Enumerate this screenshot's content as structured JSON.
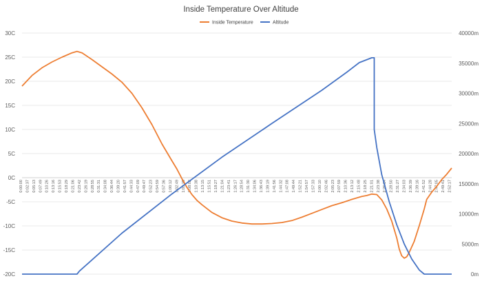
{
  "chart_data": {
    "type": "line",
    "title": "Inside Temperature Over Altitude",
    "legend_position": "top",
    "grid": true,
    "x_axis": {
      "label": "",
      "ticks": [
        "0:00:00",
        "0:02:37",
        "0:05:13",
        "0:07:49",
        "0:10:26",
        "0:13:16",
        "0:15:53",
        "0:18:29",
        "0:21:06",
        "0:23:42",
        "0:26:19",
        "0:28:55",
        "0:31:31",
        "0:34:08",
        "0:36:44",
        "0:39:20",
        "0:41:57",
        "0:44:33",
        "0:47:09",
        "0:49:47",
        "0:52:23",
        "0:54:59",
        "0:57:36",
        "1:00:12",
        "1:02:49",
        "1:05:25",
        "1:08:02",
        "1:10:38",
        "1:13:15",
        "1:15:51",
        "1:18:27",
        "1:21:04",
        "1:23:41",
        "1:26:17",
        "1:28:54",
        "1:31:30",
        "1:34:06",
        "1:36:43",
        "1:39:19",
        "1:41:56",
        "1:44:32",
        "1:47:08",
        "1:49:44",
        "1:52:21",
        "1:54:57",
        "1:57:33",
        "2:00:10",
        "2:02:46",
        "2:05:23",
        "2:07:59",
        "2:10:36",
        "2:13:12",
        "2:15:48",
        "2:18:25",
        "2:21:01",
        "2:23:38",
        "2:26:14",
        "2:28:50",
        "2:31:27",
        "2:34:03",
        "2:36:39",
        "2:39:16",
        "2:41:52",
        "2:44:28",
        "2:47:05",
        "2:49:41",
        "2:52:17",
        "2:54:54",
        "2:57:30",
        "3:00:07",
        "3:02:43",
        "3:05:19",
        "3:07:56",
        "3:10:32",
        "3:13:09",
        "3:15:45",
        "3:18:21",
        "3:20:58",
        "3:23:34",
        "3:26:10",
        "3:28:47",
        "3:31:23",
        "3:34:00",
        "3:36:36",
        "3:39:12",
        "3:41:49",
        "3:44:25",
        "3:47:01",
        "3:49:38",
        "3:52:14",
        "3:54:50",
        "3:57:27",
        "4:00:03",
        "4:02:39",
        "4:05:16",
        "4:07:52",
        "4:10:28",
        "4:13:05",
        "4:15:41",
        "4:18:17",
        "4:20:54"
      ]
    },
    "y_axis_left": {
      "label": "",
      "min": -20,
      "max": 30,
      "step": 5,
      "tick_labels": [
        "-20C",
        "-15C",
        "-10C",
        "-5C",
        "0C",
        "5C",
        "10C",
        "15C",
        "20C",
        "25C",
        "30C"
      ]
    },
    "y_axis_right": {
      "label": "",
      "min": 0,
      "max": 40000,
      "step": 5000,
      "tick_labels": [
        "0m",
        "5000m",
        "10000m",
        "15000m",
        "20000m",
        "25000m",
        "30000m",
        "35000m",
        "40000m"
      ]
    },
    "series": [
      {
        "name": "Inside Temperature",
        "axis": "left",
        "color": "#ED7D31",
        "points": [
          [
            0,
            19
          ],
          [
            4,
            21.2
          ],
          [
            8,
            22.8
          ],
          [
            12,
            24
          ],
          [
            16,
            25
          ],
          [
            20,
            25.9
          ],
          [
            22,
            26.2
          ],
          [
            24,
            25.9
          ],
          [
            28,
            24.5
          ],
          [
            32,
            23
          ],
          [
            36,
            21.5
          ],
          [
            40,
            19.8
          ],
          [
            44,
            17.5
          ],
          [
            48,
            14.5
          ],
          [
            52,
            11
          ],
          [
            56,
            7
          ],
          [
            60,
            3.5
          ],
          [
            62,
            1.8
          ],
          [
            64,
            -0.2
          ],
          [
            66,
            -2
          ],
          [
            68,
            -3.5
          ],
          [
            70,
            -4.7
          ],
          [
            72,
            -5.6
          ],
          [
            76,
            -7.2
          ],
          [
            80,
            -8.3
          ],
          [
            84,
            -9
          ],
          [
            88,
            -9.4
          ],
          [
            92,
            -9.6
          ],
          [
            96,
            -9.6
          ],
          [
            100,
            -9.5
          ],
          [
            104,
            -9.3
          ],
          [
            108,
            -8.9
          ],
          [
            112,
            -8.2
          ],
          [
            116,
            -7.4
          ],
          [
            120,
            -6.6
          ],
          [
            124,
            -5.8
          ],
          [
            128,
            -5.2
          ],
          [
            132,
            -4.5
          ],
          [
            136,
            -3.9
          ],
          [
            138,
            -3.7
          ],
          [
            140,
            -3.4
          ],
          [
            142,
            -3.5
          ],
          [
            144,
            -4.6
          ],
          [
            146,
            -6.5
          ],
          [
            148,
            -9
          ],
          [
            150,
            -12.5
          ],
          [
            151,
            -14.8
          ],
          [
            152,
            -16.2
          ],
          [
            153,
            -16.7
          ],
          [
            154,
            -16.4
          ],
          [
            155,
            -15.5
          ],
          [
            157,
            -13.2
          ],
          [
            159,
            -10
          ],
          [
            161,
            -6.5
          ],
          [
            162,
            -4.5
          ],
          [
            164,
            -3
          ],
          [
            166,
            -1.8
          ],
          [
            168,
            -0.4
          ],
          [
            170,
            0.7
          ],
          [
            172,
            2
          ]
        ]
      },
      {
        "name": "Altitude",
        "axis": "right",
        "color": "#4472C4",
        "points": [
          [
            0,
            0
          ],
          [
            20,
            0
          ],
          [
            22,
            0
          ],
          [
            23,
            500
          ],
          [
            40,
            6800
          ],
          [
            60,
            13300
          ],
          [
            80,
            19400
          ],
          [
            100,
            25000
          ],
          [
            120,
            30500
          ],
          [
            130,
            33500
          ],
          [
            135,
            35100
          ],
          [
            140,
            35900
          ],
          [
            141,
            35900
          ],
          [
            141,
            24000
          ],
          [
            142,
            21000
          ],
          [
            144,
            16500
          ],
          [
            147,
            12000
          ],
          [
            150,
            8200
          ],
          [
            153,
            5000
          ],
          [
            156,
            2500
          ],
          [
            159,
            700
          ],
          [
            161,
            0
          ],
          [
            165,
            0
          ],
          [
            172,
            0
          ]
        ]
      }
    ]
  }
}
